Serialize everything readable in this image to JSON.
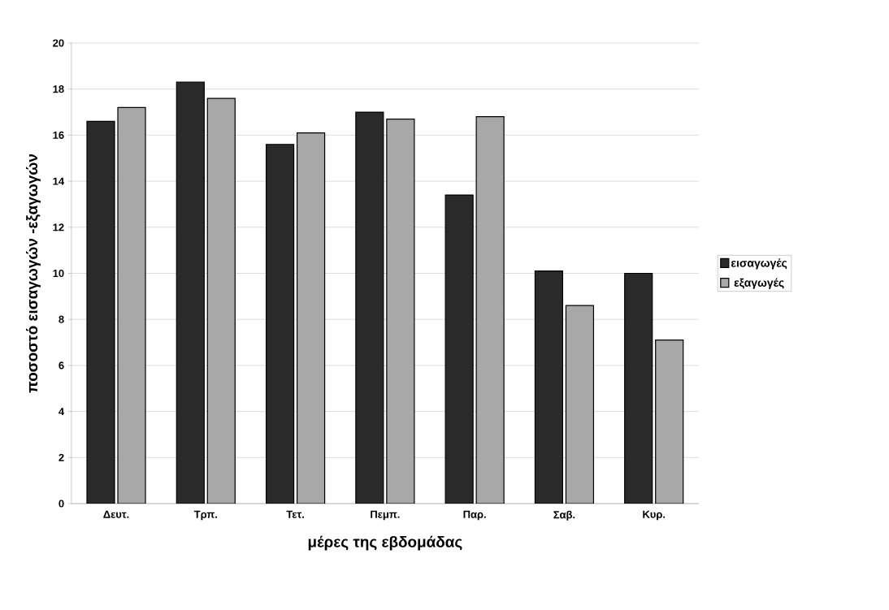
{
  "chart_data": {
    "type": "bar",
    "xlabel": "μέρες της εβδομάδας",
    "ylabel": "ποσοστό εισαγωγών -εξαγωγών",
    "categories": [
      "Δευτ.",
      "Τρπ.",
      "Τετ.",
      "Πεμπ.",
      "Παρ.",
      "Σαβ.",
      "Κυρ."
    ],
    "series": [
      {
        "name": "εισαγωγές",
        "color": "#2a2a2a",
        "values": [
          16.6,
          18.3,
          15.6,
          17.0,
          13.4,
          10.1,
          10.0
        ]
      },
      {
        "name": "εξαγωγές",
        "color": "#a8a8a8",
        "values": [
          17.2,
          17.6,
          16.1,
          16.7,
          16.8,
          8.6,
          7.1
        ]
      }
    ],
    "ylim": [
      0,
      20
    ],
    "yticks": [
      0,
      2,
      4,
      6,
      8,
      10,
      12,
      14,
      16,
      18,
      20
    ],
    "grid": "y",
    "legend": "right"
  }
}
